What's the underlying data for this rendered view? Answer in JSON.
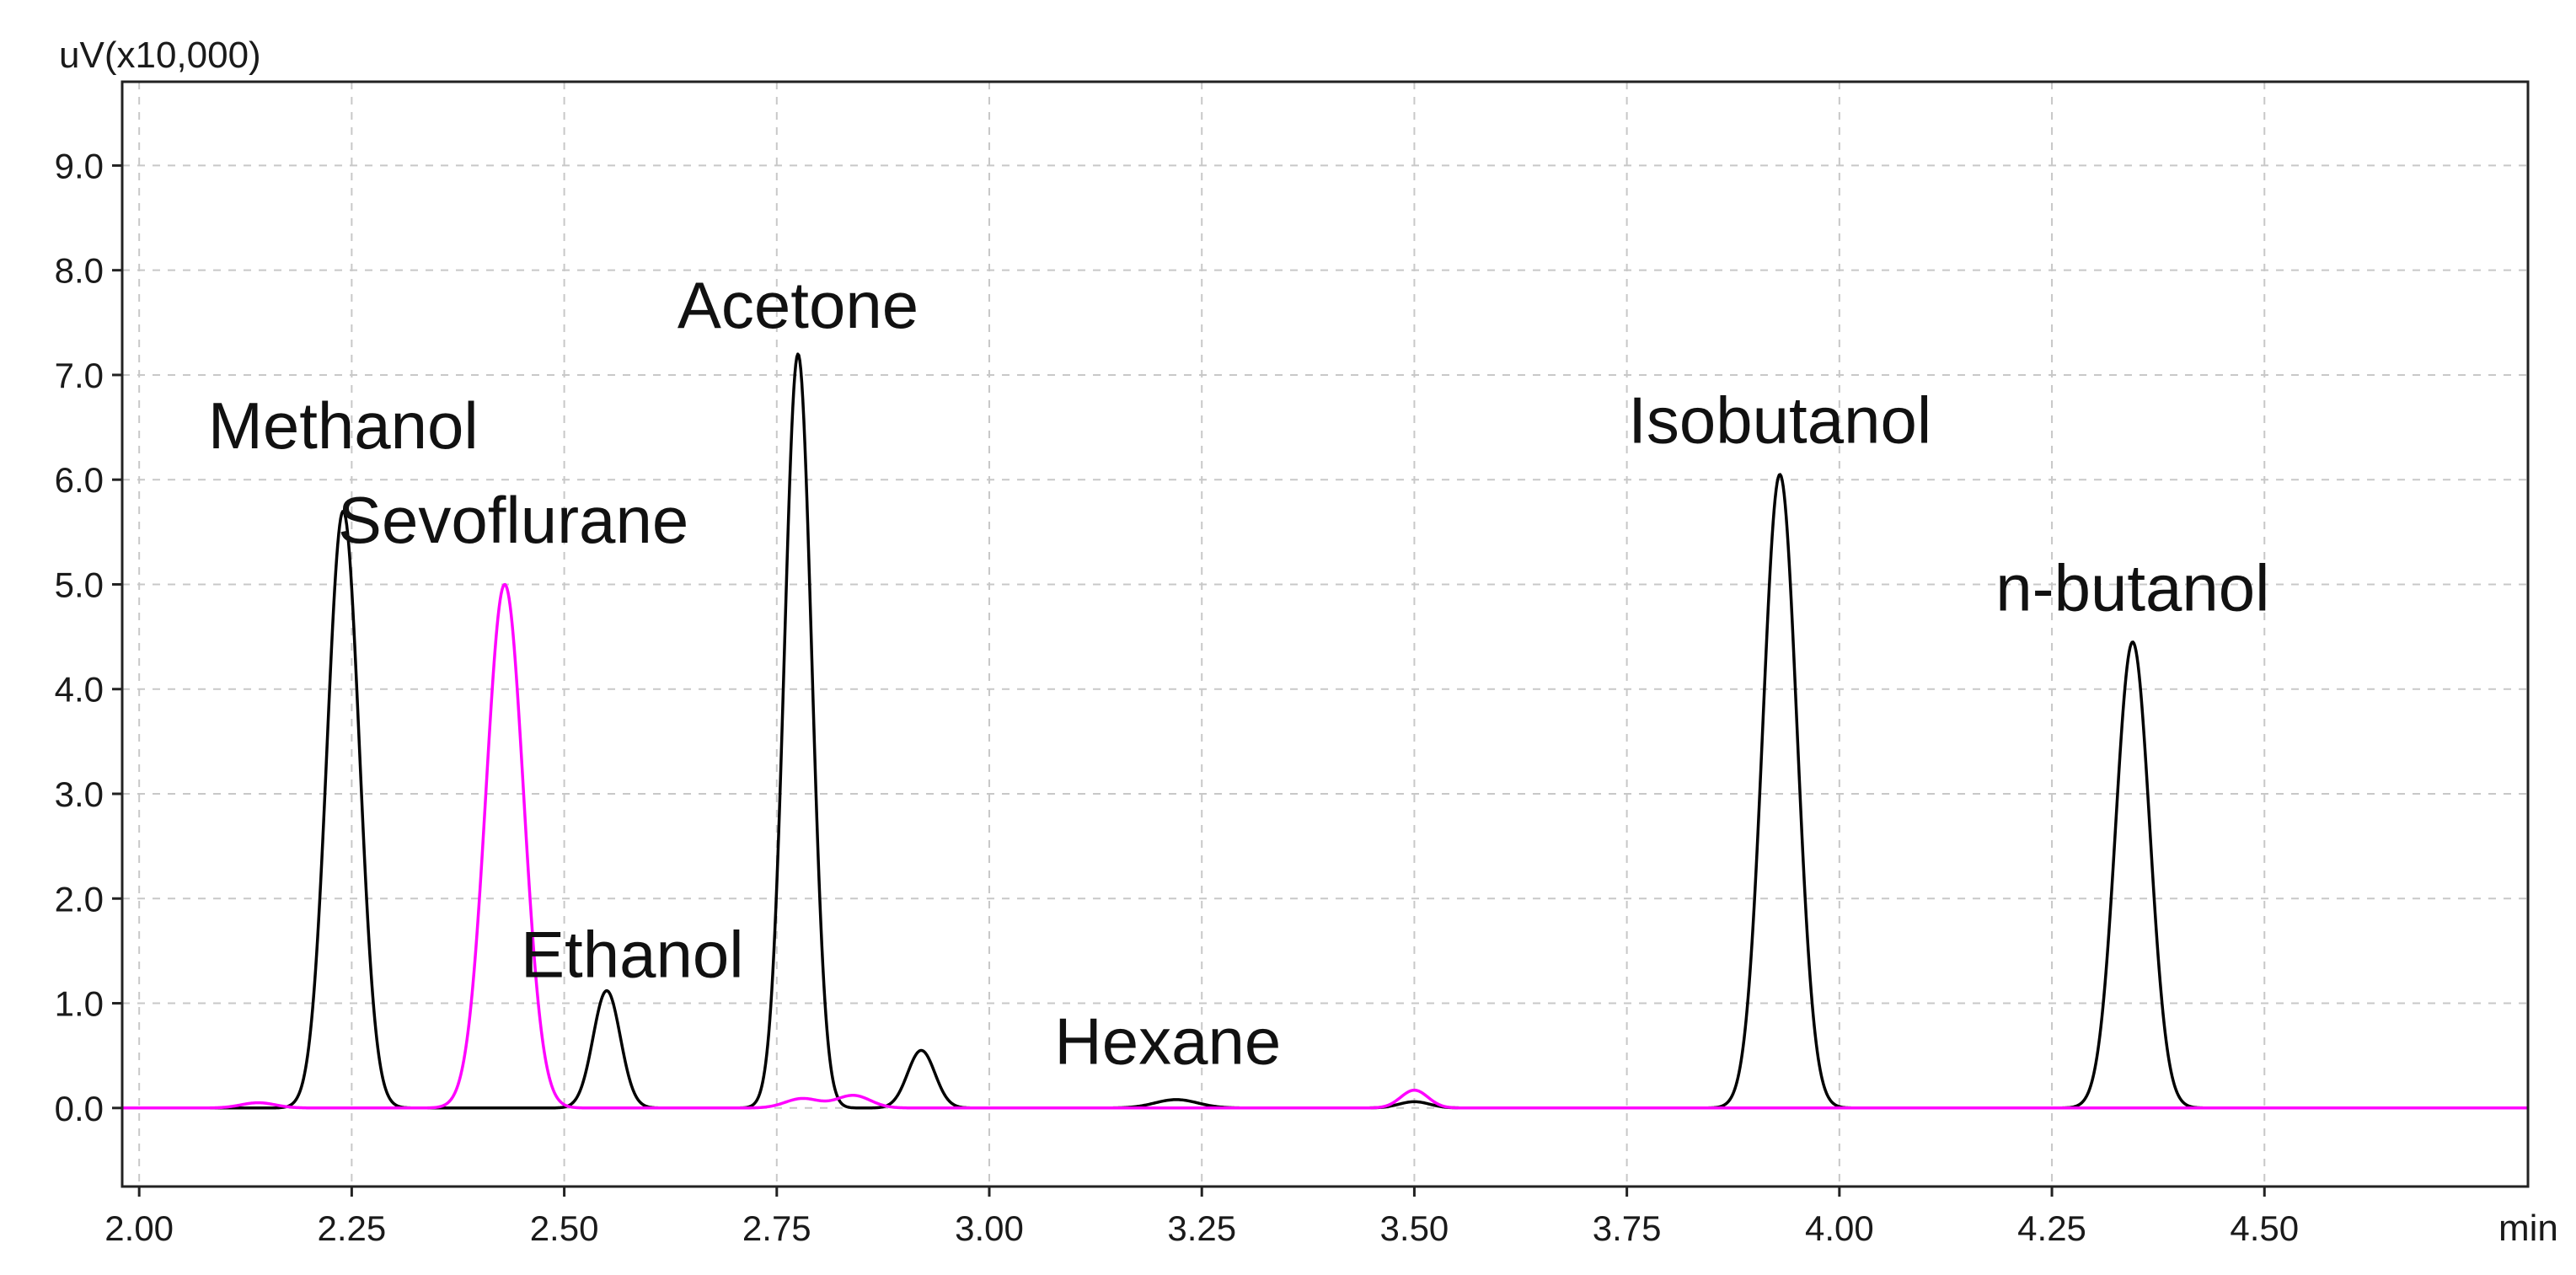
{
  "chart_data": {
    "type": "line",
    "y_unit_label": "uV(x10,000)",
    "x_unit_label": "min",
    "xlim": [
      1.98,
      4.81
    ],
    "ylim": [
      -0.75,
      9.8
    ],
    "x_ticks": [
      2.0,
      2.25,
      2.5,
      2.75,
      3.0,
      3.25,
      3.5,
      3.75,
      4.0,
      4.25,
      4.5
    ],
    "x_tick_labels": [
      "2.00",
      "2.25",
      "2.50",
      "2.75",
      "3.00",
      "3.25",
      "3.50",
      "3.75",
      "4.00",
      "4.25",
      "4.50"
    ],
    "y_ticks": [
      0,
      1,
      2,
      3,
      4,
      5,
      6,
      7,
      8,
      9
    ],
    "y_tick_labels": [
      "0.0",
      "1.0",
      "2.0",
      "3.0",
      "4.0",
      "5.0",
      "6.0",
      "7.0",
      "8.0",
      "9.0"
    ],
    "grid": true,
    "series": [
      {
        "color": "#000000",
        "peaks": [
          {
            "rt": 2.24,
            "height": 5.7,
            "width": 0.019
          },
          {
            "rt": 2.55,
            "height": 1.12,
            "width": 0.016
          },
          {
            "rt": 2.775,
            "height": 7.2,
            "width": 0.016
          },
          {
            "rt": 2.92,
            "height": 0.55,
            "width": 0.016
          },
          {
            "rt": 3.22,
            "height": 0.08,
            "width": 0.025
          },
          {
            "rt": 3.5,
            "height": 0.06,
            "width": 0.018
          },
          {
            "rt": 3.93,
            "height": 6.05,
            "width": 0.02
          },
          {
            "rt": 4.345,
            "height": 4.45,
            "width": 0.02
          }
        ]
      },
      {
        "color": "#ff00ff",
        "peaks": [
          {
            "rt": 2.14,
            "height": 0.05,
            "width": 0.02
          },
          {
            "rt": 2.43,
            "height": 5.0,
            "width": 0.022
          },
          {
            "rt": 2.78,
            "height": 0.09,
            "width": 0.02
          },
          {
            "rt": 2.84,
            "height": 0.12,
            "width": 0.02
          },
          {
            "rt": 3.5,
            "height": 0.17,
            "width": 0.016
          }
        ]
      }
    ],
    "annotations": [
      {
        "text": "Methanol",
        "x": 2.24,
        "y": 6.3
      },
      {
        "text": "Sevoflurane",
        "x": 2.44,
        "y": 5.4
      },
      {
        "text": "Ethanol",
        "x": 2.58,
        "y": 1.25
      },
      {
        "text": "Acetone",
        "x": 2.775,
        "y": 7.45
      },
      {
        "text": "Hexane",
        "x": 3.21,
        "y": 0.42
      },
      {
        "text": "Isobutanol",
        "x": 3.93,
        "y": 6.35
      },
      {
        "text": "n-butanol",
        "x": 4.345,
        "y": 4.75
      }
    ]
  }
}
